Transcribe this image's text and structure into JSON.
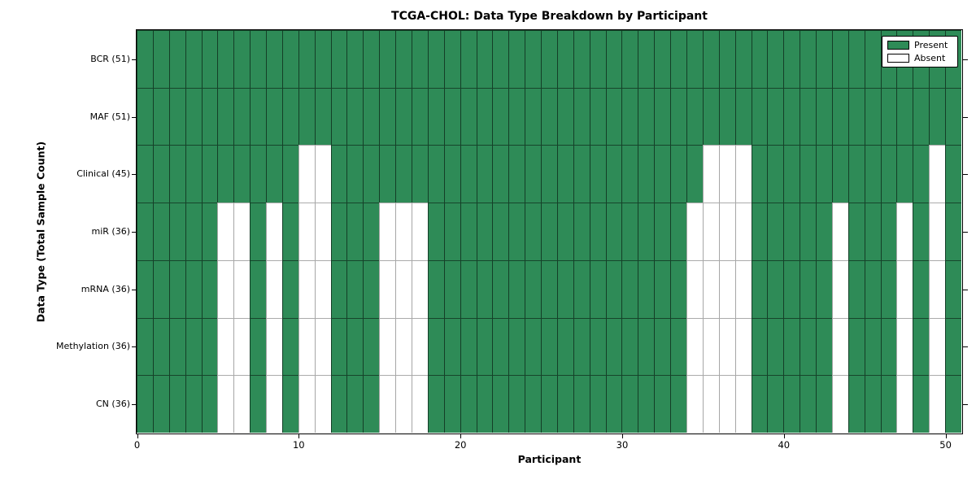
{
  "title": "TCGA-CHOL: Data Type Breakdown by Participant",
  "axes": {
    "xlabel": "Participant",
    "ylabel": "Data Type (Total Sample Count)"
  },
  "legend": {
    "present": "Present",
    "absent": "Absent"
  },
  "colors": {
    "present_fill": "#2E8B57",
    "absent_fill": "#FFFFFF",
    "frame": "#000000"
  },
  "chart_data": {
    "type": "heatmap",
    "title": "TCGA-CHOL: Data Type Breakdown by Participant",
    "xlabel": "Participant",
    "ylabel": "Data Type (Total Sample Count)",
    "legend_entries": [
      "Present",
      "Absent"
    ],
    "legend_position": "upper right",
    "n_participants": 51,
    "x_range": [
      0,
      51
    ],
    "x_tick_values": [
      0,
      10,
      20,
      30,
      40,
      50
    ],
    "categories": [
      "BCR (51)",
      "MAF (51)",
      "Clinical (45)",
      "miR (36)",
      "mRNA (36)",
      "Methylation (36)",
      "CN (36)"
    ],
    "rows": [
      {
        "label": "BCR (51)",
        "data_type": "BCR",
        "total_samples": 51,
        "absent_participants": []
      },
      {
        "label": "MAF (51)",
        "data_type": "MAF",
        "total_samples": 51,
        "absent_participants": []
      },
      {
        "label": "Clinical (45)",
        "data_type": "Clinical",
        "total_samples": 45,
        "absent_participants": [
          10,
          11,
          35,
          36,
          37,
          49
        ]
      },
      {
        "label": "miR (36)",
        "data_type": "miR",
        "total_samples": 36,
        "absent_participants": [
          5,
          6,
          8,
          10,
          11,
          15,
          16,
          17,
          34,
          35,
          36,
          37,
          43,
          47,
          49
        ]
      },
      {
        "label": "mRNA (36)",
        "data_type": "mRNA",
        "total_samples": 36,
        "absent_participants": [
          5,
          6,
          8,
          10,
          11,
          15,
          16,
          17,
          34,
          35,
          36,
          37,
          43,
          47,
          49
        ]
      },
      {
        "label": "Methylation (36)",
        "data_type": "Methylation",
        "total_samples": 36,
        "absent_participants": [
          5,
          6,
          8,
          10,
          11,
          15,
          16,
          17,
          34,
          35,
          36,
          37,
          43,
          47,
          49
        ]
      },
      {
        "label": "CN (36)",
        "data_type": "CN",
        "total_samples": 36,
        "absent_participants": [
          5,
          6,
          8,
          10,
          11,
          15,
          16,
          17,
          34,
          35,
          36,
          37,
          43,
          47,
          49
        ]
      }
    ]
  }
}
